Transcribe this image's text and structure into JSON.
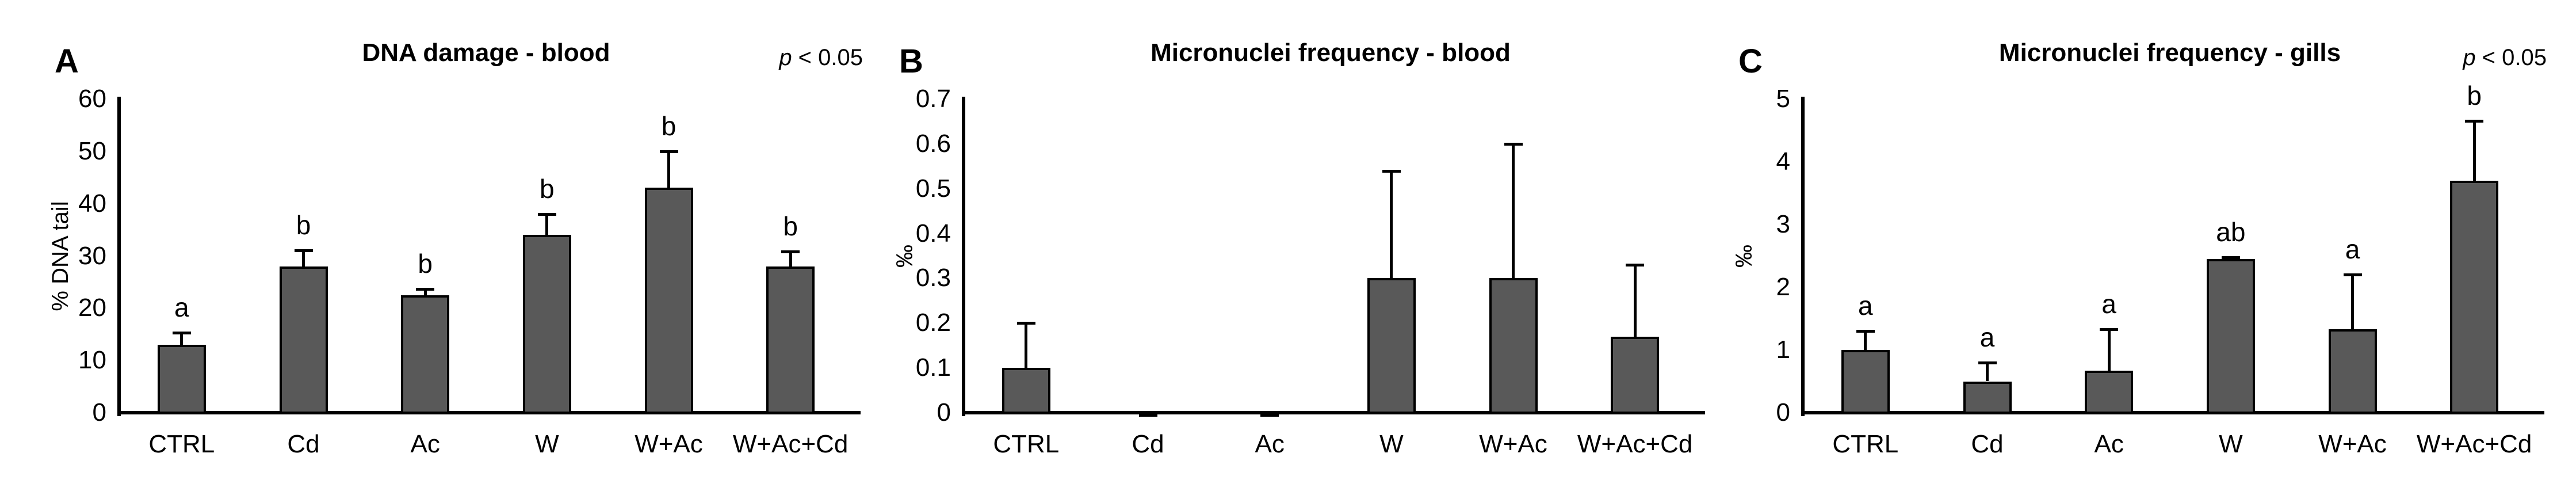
{
  "figure": {
    "background": "#ffffff",
    "bar_fill": "#595959",
    "bar_border": "#000000",
    "text_color": "#000000"
  },
  "chart_data": [
    {
      "type": "bar",
      "panel_label": "A",
      "title": "DNA damage - blood",
      "p_note": {
        "variable": "p",
        "comparison": " < 0.05"
      },
      "ylabel": "% DNA tail",
      "ylim": [
        0,
        60
      ],
      "grid": false,
      "legend": null,
      "ytick_labels": [
        "0",
        "10",
        "20",
        "30",
        "40",
        "50",
        "60"
      ],
      "ytick_values": [
        0,
        10,
        20,
        30,
        40,
        50,
        60
      ],
      "categories": [
        "CTRL",
        "Cd",
        "Ac",
        "W",
        "W+Ac",
        "W+Ac+Cd"
      ],
      "values": [
        13,
        28,
        22.5,
        34,
        43,
        28
      ],
      "errors_plus": [
        2.3,
        3,
        1.2,
        4,
        7,
        2.8
      ],
      "sig_letters": [
        "a",
        "b",
        "b",
        "b",
        "b",
        "b"
      ]
    },
    {
      "type": "bar",
      "panel_label": "B",
      "title": "Micronuclei frequency - blood",
      "p_note": null,
      "ylabel": "‰",
      "ylim": [
        0,
        0.7
      ],
      "grid": false,
      "legend": null,
      "ytick_labels": [
        "0",
        "0.1",
        "0.2",
        "0.3",
        "0.4",
        "0.5",
        "0.6",
        "0.7"
      ],
      "ytick_values": [
        0,
        0.1,
        0.2,
        0.3,
        0.4,
        0.5,
        0.6,
        0.7
      ],
      "categories": [
        "CTRL",
        "Cd",
        "Ac",
        "W",
        "W+Ac",
        "W+Ac+Cd"
      ],
      "values": [
        0.1,
        0,
        0,
        0.3,
        0.3,
        0.17
      ],
      "errors_plus": [
        0.1,
        0,
        0,
        0.24,
        0.3,
        0.16
      ],
      "sig_letters": [
        "",
        "",
        "",
        "",
        "",
        ""
      ]
    },
    {
      "type": "bar",
      "panel_label": "C",
      "title": "Micronuclei frequency - gills",
      "p_note": {
        "variable": "p",
        "comparison": " < 0.05"
      },
      "ylabel": "‰",
      "ylim": [
        0,
        5
      ],
      "grid": false,
      "legend": null,
      "ytick_labels": [
        "0",
        "1",
        "2",
        "3",
        "4",
        "5"
      ],
      "ytick_values": [
        0,
        1,
        2,
        3,
        4,
        5
      ],
      "categories": [
        "CTRL",
        "Cd",
        "Ac",
        "W",
        "W+Ac",
        "W+Ac+Cd"
      ],
      "values": [
        1.0,
        0.5,
        0.67,
        2.45,
        1.33,
        3.7
      ],
      "errors_plus": [
        0.3,
        0.3,
        0.66,
        0.03,
        0.87,
        0.95
      ],
      "sig_letters": [
        "a",
        "a",
        "a",
        "ab",
        "a",
        "b"
      ]
    }
  ]
}
